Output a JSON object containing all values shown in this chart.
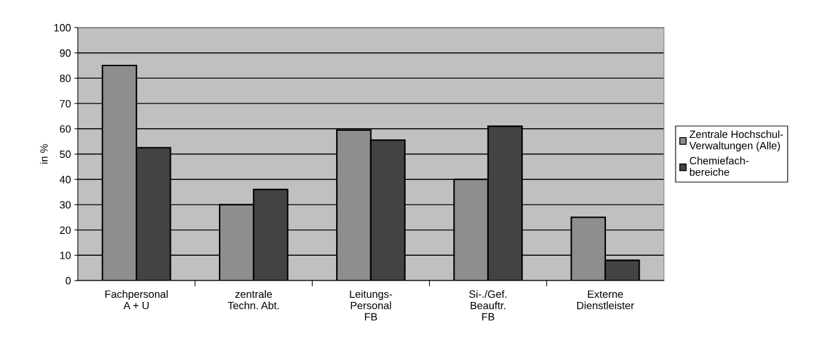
{
  "chart_data": {
    "type": "bar",
    "ylabel": "in %",
    "categories": [
      "Fachpersonal\nA + U",
      "zentrale\nTechn. Abt.",
      "Leitungs-\nPersonal\nFB",
      "Si-./Gef.\nBeauftr.\nFB",
      "Externe\nDienstleister"
    ],
    "series": [
      {
        "name": "Zentrale Hochschul-\nVerwaltungen (Alle)",
        "color": "#8e8e8e",
        "values": [
          85,
          30,
          59.5,
          40,
          25
        ]
      },
      {
        "name": "Chemiefach-\nbereiche",
        "color": "#434343",
        "values": [
          52.5,
          36,
          55.5,
          61,
          8
        ]
      }
    ],
    "ylim": [
      0,
      100
    ],
    "yticks": [
      0,
      10,
      20,
      30,
      40,
      50,
      60,
      70,
      80,
      90,
      100
    ],
    "grid": "y",
    "legend": "right"
  }
}
